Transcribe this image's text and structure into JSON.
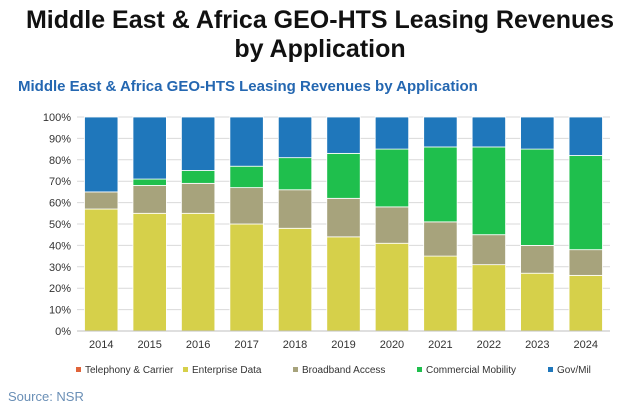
{
  "page": {
    "title_line1": "Middle East & Africa GEO-HTS Leasing Revenues",
    "title_line2": "by Application",
    "source": "Source: NSR"
  },
  "chart_data": {
    "type": "bar",
    "stacked": true,
    "title": "Middle East & Africa GEO-HTS Leasing Revenues by Application",
    "xlabel": "",
    "ylabel": "",
    "ylim": [
      0,
      100
    ],
    "y_ticks": [
      "0%",
      "10%",
      "20%",
      "30%",
      "40%",
      "50%",
      "60%",
      "70%",
      "80%",
      "90%",
      "100%"
    ],
    "grid": true,
    "legend_position": "bottom",
    "categories": [
      "2014",
      "2015",
      "2016",
      "2017",
      "2018",
      "2019",
      "2020",
      "2021",
      "2022",
      "2023",
      "2024"
    ],
    "series": [
      {
        "name": "Telephony & Carrier",
        "color": "#e0643a",
        "values": [
          0,
          0,
          0,
          0,
          0,
          0,
          0,
          0,
          0,
          0,
          0
        ]
      },
      {
        "name": "Enterprise Data",
        "color": "#d6d04a",
        "values": [
          57,
          55,
          55,
          50,
          48,
          44,
          41,
          35,
          31,
          27,
          26
        ]
      },
      {
        "name": "Broadband Access",
        "color": "#a7a37c",
        "values": [
          8,
          13,
          14,
          17,
          18,
          18,
          17,
          16,
          14,
          13,
          12
        ]
      },
      {
        "name": "Commercial Mobility",
        "color": "#1fbf4d",
        "values": [
          0,
          3,
          6,
          10,
          15,
          21,
          27,
          35,
          41,
          45,
          44
        ]
      },
      {
        "name": "Gov/Mil",
        "color": "#1f77bb",
        "values": [
          35,
          29,
          25,
          23,
          19,
          17,
          15,
          14,
          14,
          15,
          18
        ]
      }
    ]
  }
}
